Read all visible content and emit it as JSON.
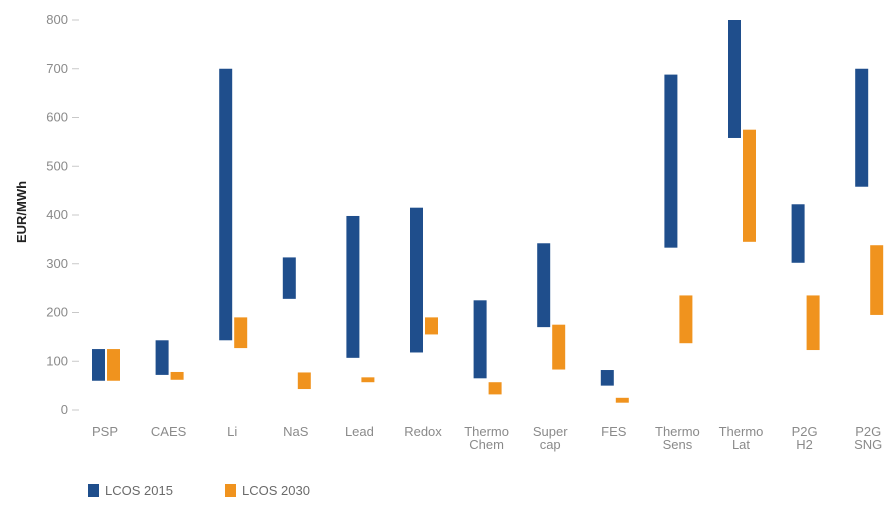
{
  "chart_data": {
    "type": "bar",
    "title": "",
    "xlabel": "",
    "ylabel": "EUR/MWh",
    "ylim": [
      0,
      800
    ],
    "yticks": [
      0,
      100,
      200,
      300,
      400,
      500,
      600,
      700,
      800
    ],
    "grid": false,
    "legend_position": "bottom-left",
    "categories": [
      [
        "PSP"
      ],
      [
        "CAES"
      ],
      [
        "Li"
      ],
      [
        "NaS"
      ],
      [
        "Lead"
      ],
      [
        "Redox"
      ],
      [
        "Thermo",
        "Chem"
      ],
      [
        "Super",
        "cap"
      ],
      [
        "FES"
      ],
      [
        "Thermo",
        "Sens"
      ],
      [
        "Thermo",
        "Lat"
      ],
      [
        "P2G",
        "H2"
      ],
      [
        "P2G",
        "SNG"
      ]
    ],
    "series": [
      {
        "name": "LCOS 2015",
        "color": "#1f4e8c",
        "ranges": [
          [
            60,
            125
          ],
          [
            72,
            143
          ],
          [
            143,
            700
          ],
          [
            228,
            313
          ],
          [
            107,
            398
          ],
          [
            118,
            415
          ],
          [
            65,
            225
          ],
          [
            170,
            342
          ],
          [
            50,
            82
          ],
          [
            333,
            688
          ],
          [
            558,
            800
          ],
          [
            302,
            422
          ],
          [
            458,
            700
          ]
        ]
      },
      {
        "name": "LCOS 2030",
        "color": "#f0931e",
        "ranges": [
          [
            60,
            125
          ],
          [
            62,
            78
          ],
          [
            127,
            190
          ],
          [
            43,
            77
          ],
          [
            57,
            67
          ],
          [
            155,
            190
          ],
          [
            32,
            57
          ],
          [
            83,
            175
          ],
          [
            15,
            25
          ],
          [
            137,
            235
          ],
          [
            345,
            575
          ],
          [
            123,
            235
          ],
          [
            195,
            338
          ]
        ]
      }
    ]
  }
}
